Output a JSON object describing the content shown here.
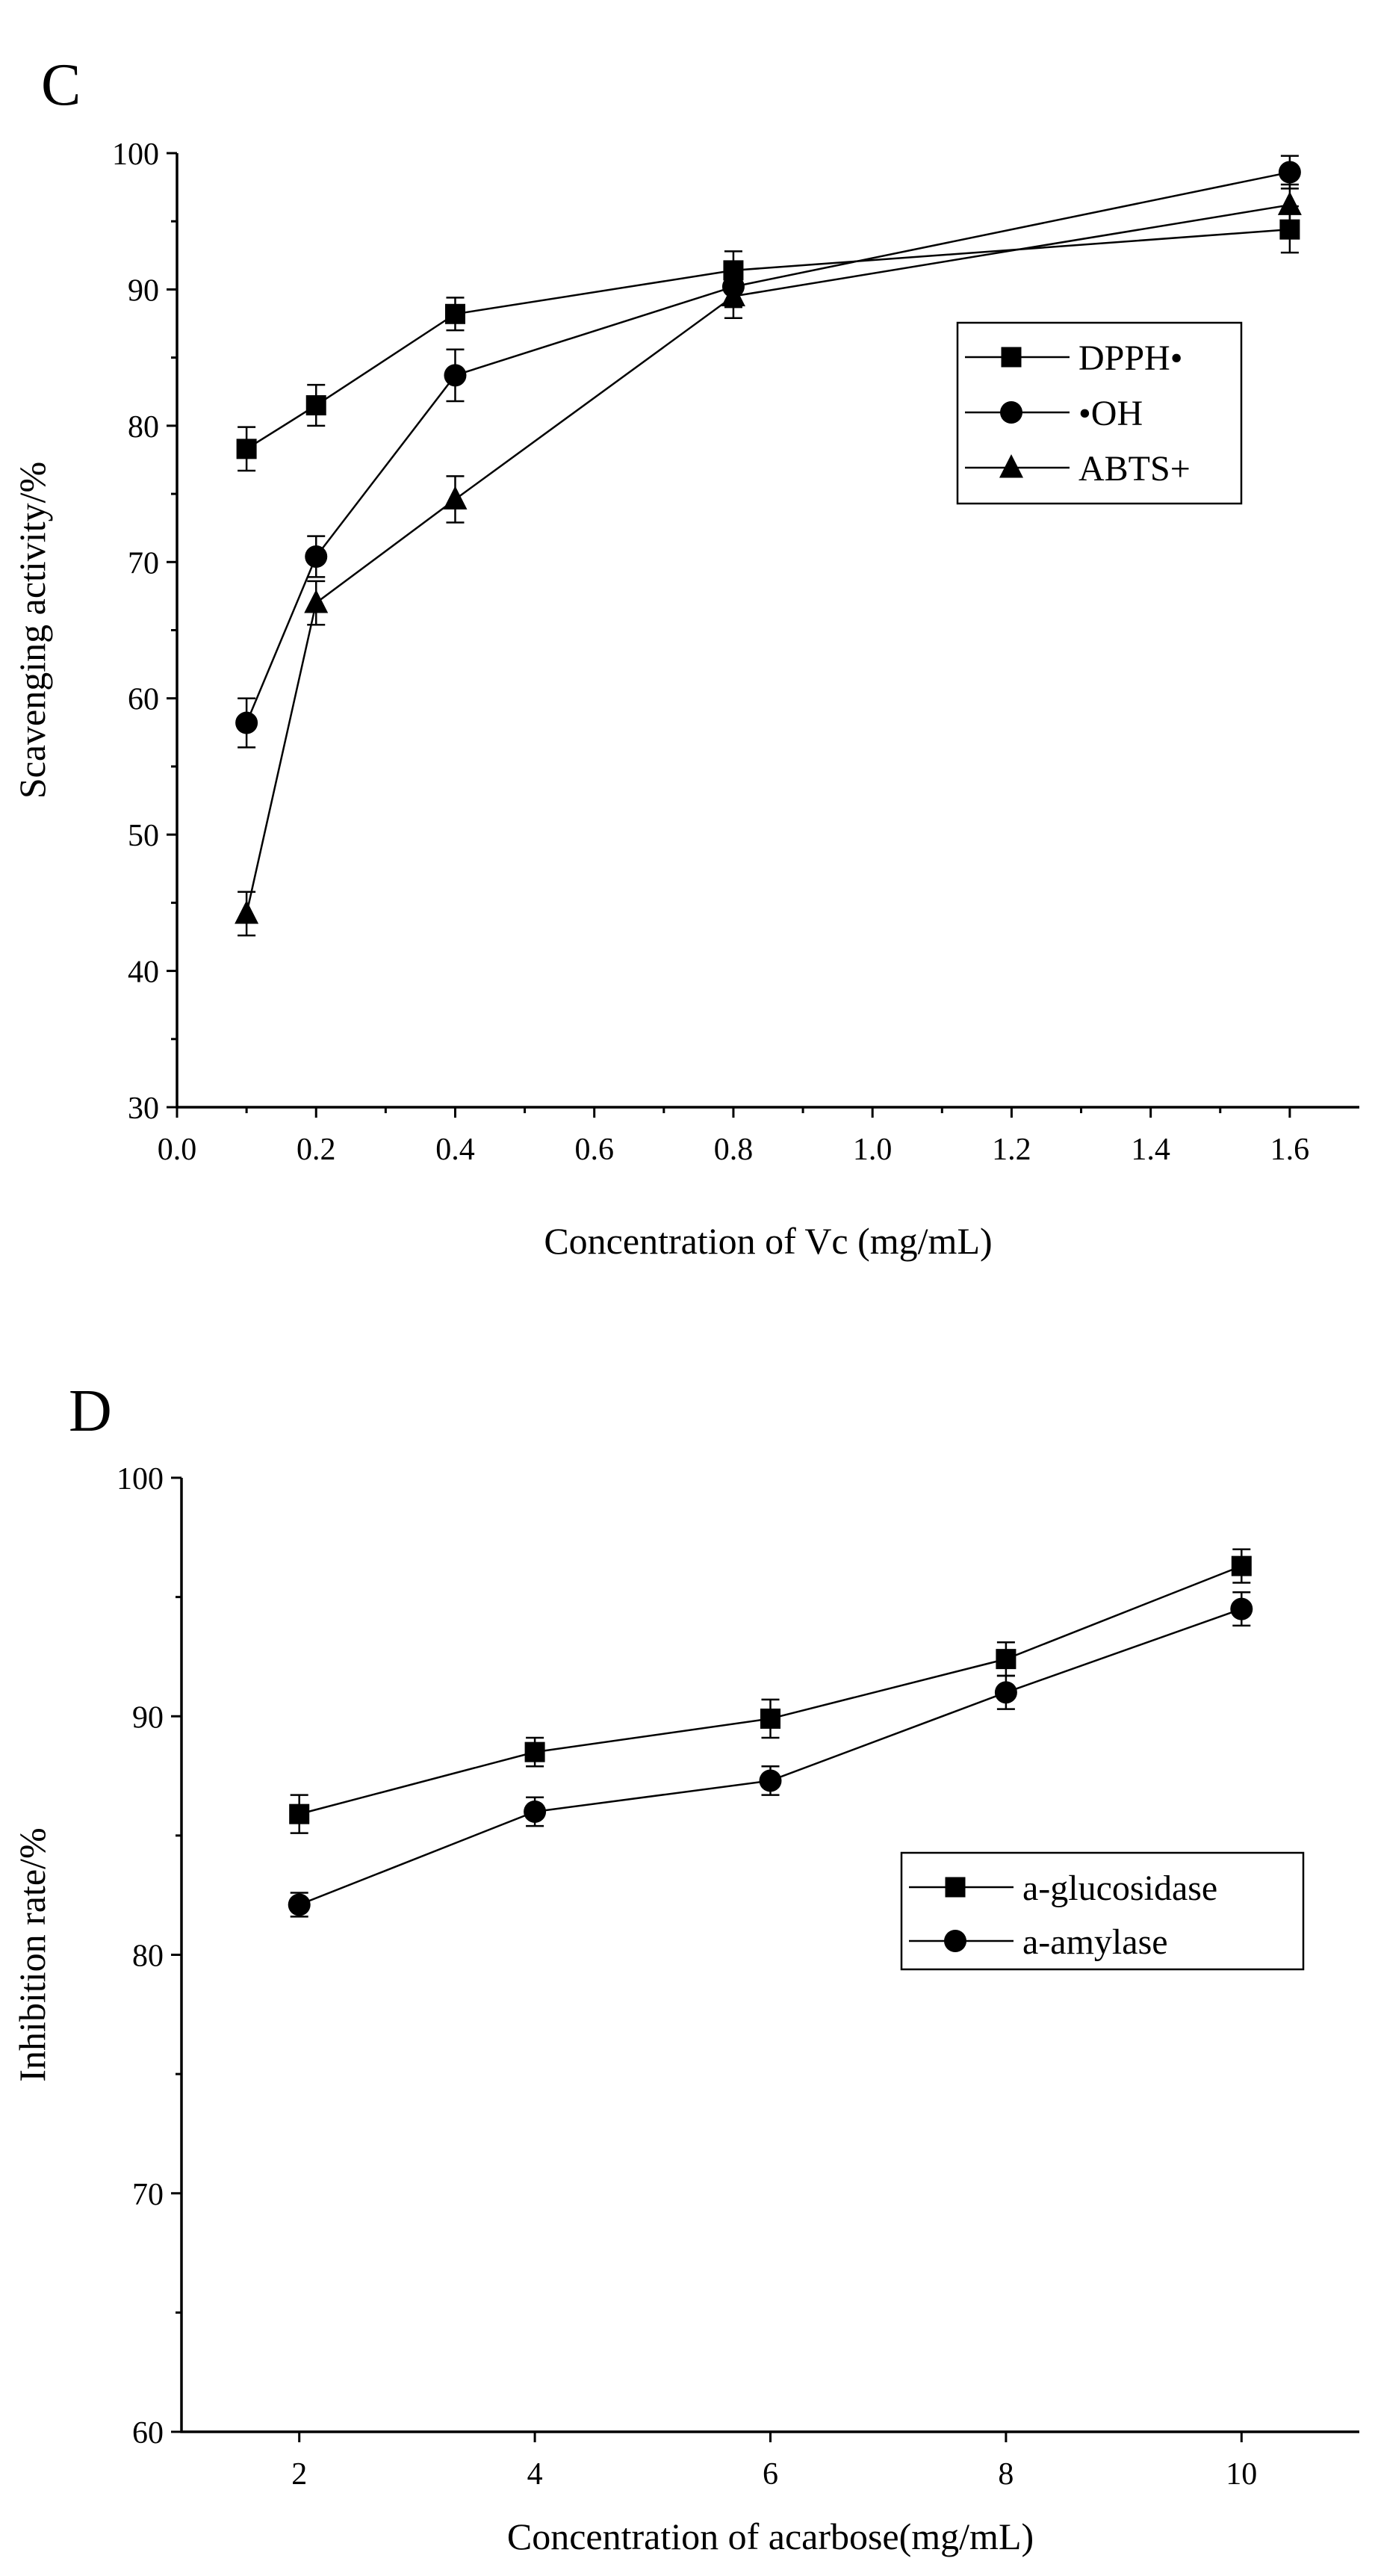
{
  "chart_data": [
    {
      "panel": "C",
      "type": "line",
      "xlabel": "Concentration of Vc (mg/mL)",
      "ylabel": "Scavenging activity/%",
      "xlim": [
        0.0,
        1.7
      ],
      "ylim": [
        30,
        100
      ],
      "xticks": [
        0.0,
        0.2,
        0.4,
        0.6,
        0.8,
        1.0,
        1.2,
        1.4,
        1.6
      ],
      "xtick_labels": [
        "0.0",
        "0.2",
        "0.4",
        "0.6",
        "0.8",
        "1.0",
        "1.2",
        "1.4",
        "1.6"
      ],
      "yticks": [
        30,
        40,
        50,
        60,
        70,
        80,
        90,
        100
      ],
      "ytick_labels": [
        "30",
        "40",
        "50",
        "60",
        "70",
        "80",
        "90",
        "100"
      ],
      "legend_position": "upper-right",
      "x": [
        0.1,
        0.2,
        0.4,
        0.8,
        1.6
      ],
      "series": [
        {
          "name": "DPPH•",
          "marker": "square",
          "values": [
            78.3,
            81.5,
            88.2,
            91.4,
            94.4
          ],
          "errors": [
            1.6,
            1.5,
            1.2,
            1.4,
            1.7
          ]
        },
        {
          "name": "•OH",
          "marker": "circle",
          "values": [
            58.2,
            70.4,
            83.7,
            90.2,
            98.6
          ],
          "errors": [
            1.8,
            1.5,
            1.9,
            1.5,
            1.2
          ]
        },
        {
          "name": "ABTS+",
          "marker": "triangle",
          "values": [
            44.2,
            67.0,
            74.6,
            89.5,
            96.2
          ],
          "errors": [
            1.6,
            1.6,
            1.7,
            1.6,
            1.5
          ]
        }
      ]
    },
    {
      "panel": "D",
      "type": "line",
      "xlabel": "Concentration of acarbose(mg/mL)",
      "ylabel": "Inhibition rate/%",
      "xlim": [
        1,
        11
      ],
      "ylim": [
        60,
        100
      ],
      "xticks": [
        2,
        4,
        6,
        8,
        10
      ],
      "xtick_labels": [
        "2",
        "4",
        "6",
        "8",
        "10"
      ],
      "yticks": [
        60,
        70,
        80,
        90,
        100
      ],
      "ytick_labels": [
        "60",
        "70",
        "80",
        "90",
        "100"
      ],
      "legend_position": "center-right",
      "x": [
        2,
        4,
        6,
        8,
        10
      ],
      "series": [
        {
          "name": "a-glucosidase",
          "marker": "square",
          "values": [
            85.9,
            88.5,
            89.9,
            92.4,
            96.3
          ],
          "errors": [
            0.8,
            0.6,
            0.8,
            0.7,
            0.7
          ]
        },
        {
          "name": "a-amylase",
          "marker": "circle",
          "values": [
            82.1,
            86.0,
            87.3,
            91.0,
            94.5
          ],
          "errors": [
            0.5,
            0.6,
            0.6,
            0.7,
            0.7
          ]
        }
      ]
    }
  ]
}
